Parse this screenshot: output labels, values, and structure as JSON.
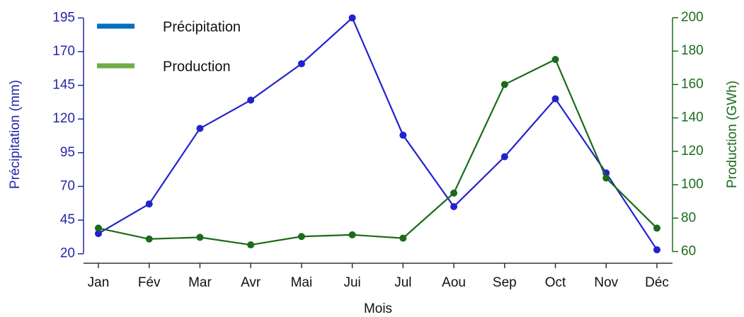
{
  "chart_data": {
    "type": "line",
    "x_label": "Mois",
    "y_label": "Précipitation (mm)",
    "y2_label": "Production (GWh)",
    "categories": [
      "Jan",
      "Fév",
      "Mar",
      "Avr",
      "Mai",
      "Jui",
      "Jul",
      "Aou",
      "Sep",
      "Oct",
      "Nov",
      "Déc"
    ],
    "series": [
      {
        "name": "Précipitation",
        "color": "#2222cc",
        "legend_color": "#0070c0",
        "values": [
          35,
          57,
          113,
          134,
          161,
          195,
          108,
          55,
          92,
          135,
          80,
          23
        ]
      },
      {
        "name": "Production",
        "color": "#1a6b1a",
        "legend_color": "#70ad47",
        "axis": "y2",
        "values": [
          74,
          67.5,
          68.5,
          64,
          69,
          70,
          68,
          95,
          160,
          175,
          104,
          74
        ]
      }
    ],
    "ylim": [
      13,
      202
    ],
    "yticks": [
      20,
      45,
      70,
      95,
      120,
      145,
      170,
      195
    ],
    "y2lim": [
      53,
      205.5
    ],
    "y2ticks": [
      60,
      80,
      100,
      120,
      140,
      160,
      180,
      200
    ],
    "legend": "upper left"
  }
}
